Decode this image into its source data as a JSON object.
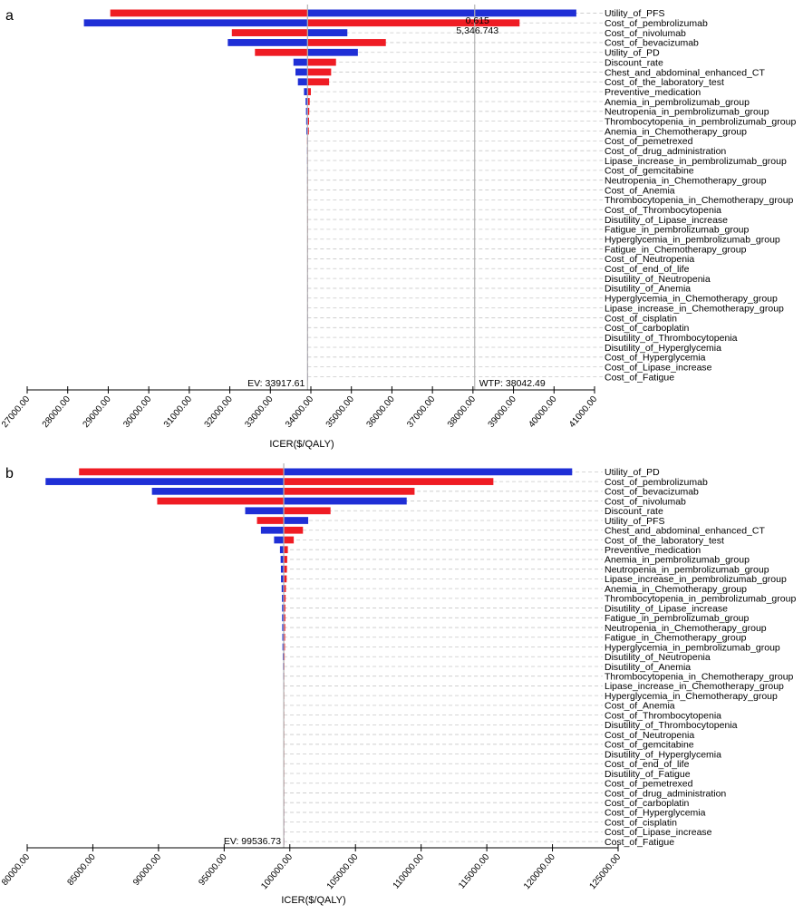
{
  "colors": {
    "low": "#ef1c24",
    "high": "#1f2fd6",
    "refline": "#b3b3b3",
    "grid": "#c8c8c8"
  },
  "chart_data": [
    {
      "type": "tornado",
      "panel_label": "a",
      "xlabel": "ICER($/QALY)",
      "xlim": [
        27000,
        41000
      ],
      "ticks": [
        27000,
        28000,
        29000,
        30000,
        31000,
        32000,
        33000,
        34000,
        35000,
        36000,
        37000,
        38000,
        39000,
        40000,
        41000
      ],
      "tick_labels": [
        "27000.00",
        "28000.00",
        "29000.00",
        "30000.00",
        "31000.00",
        "32000.00",
        "33000.00",
        "34000.00",
        "35000.00",
        "36000.00",
        "37000.00",
        "38000.00",
        "39000.00",
        "40000.00",
        "41000.00"
      ],
      "ev": 33917.61,
      "ev_label": "EV: 33917.61",
      "wtp": 38042.49,
      "wtp_label": "WTP: 38042.49",
      "annotations": [
        "0.615",
        "5,346.743"
      ],
      "parameters": [
        {
          "name": "Utility_of_PFS",
          "red": [
            29050,
            33917.61
          ],
          "blue": [
            33917.61,
            40550
          ]
        },
        {
          "name": "Cost_of_pembrolizumab",
          "red": [
            33917.61,
            39150
          ],
          "blue": [
            28400,
            33917.61
          ]
        },
        {
          "name": "Cost_of_nivolumab",
          "red": [
            32050,
            33917.61
          ],
          "blue": [
            33917.61,
            34900
          ]
        },
        {
          "name": "Cost_of_bevacizumab",
          "red": [
            33917.61,
            35850
          ],
          "blue": [
            31950,
            33917.61
          ]
        },
        {
          "name": "Utility_of_PD",
          "red": [
            32620,
            33917.61
          ],
          "blue": [
            33917.61,
            35160
          ]
        },
        {
          "name": "Discount_rate",
          "red": [
            33917.61,
            34620
          ],
          "blue": [
            33570,
            33917.61
          ]
        },
        {
          "name": "Chest_and_abdominal_enhanced_CT",
          "red": [
            33917.61,
            34500
          ],
          "blue": [
            33620,
            33917.61
          ]
        },
        {
          "name": "Cost_of_the_laboratory_test",
          "red": [
            33917.61,
            34450
          ],
          "blue": [
            33680,
            33917.61
          ]
        },
        {
          "name": "Preventive_medication",
          "red": [
            33917.61,
            34000
          ],
          "blue": [
            33830,
            33917.61
          ]
        },
        {
          "name": "Anemia_in_pembrolizumab_group",
          "red": [
            33917.61,
            33970
          ],
          "blue": [
            33870,
            33917.61
          ]
        },
        {
          "name": "Neutropenia_in_pembrolizumab_group",
          "red": [
            33917.61,
            33960
          ],
          "blue": [
            33880,
            33917.61
          ]
        },
        {
          "name": "Thrombocytopenia_in_pembrolizumab_group",
          "red": [
            33917.61,
            33955
          ],
          "blue": [
            33885,
            33917.61
          ]
        },
        {
          "name": "Anemia_in_Chemotherapy_group",
          "red": [
            33917.61,
            33950
          ],
          "blue": [
            33888,
            33917.61
          ]
        },
        {
          "name": "Cost_of_pemetrexed",
          "red": [
            33905,
            33917.61
          ],
          "blue": [
            33917.61,
            33930
          ]
        },
        {
          "name": "Cost_of_drug_administration",
          "red": [
            33917.61,
            33930
          ],
          "blue": [
            33905,
            33917.61
          ]
        },
        {
          "name": "Lipase_increase_in_pembrolizumab_group",
          "red": [
            33917.61,
            33930
          ],
          "blue": [
            33906,
            33917.61
          ]
        },
        {
          "name": "Cost_of_gemcitabine",
          "red": [
            33908,
            33917.61
          ],
          "blue": [
            33917.61,
            33928
          ]
        },
        {
          "name": "Neutropenia_in_Chemotherapy_group",
          "red": [
            33917.61,
            33927
          ],
          "blue": [
            33908,
            33917.61
          ]
        },
        {
          "name": "Cost_of_Anemia",
          "red": [
            33917.61,
            33926
          ],
          "blue": [
            33909,
            33917.61
          ]
        },
        {
          "name": "Thrombocytopenia_in_Chemotherapy_group",
          "red": [
            33917.61,
            33926
          ],
          "blue": [
            33909,
            33917.61
          ]
        },
        {
          "name": "Cost_of_Thrombocytopenia",
          "red": [
            33917.61,
            33925
          ],
          "blue": [
            33910,
            33917.61
          ]
        },
        {
          "name": "Disutility_of_Lipase_increase",
          "red": [
            33917.61,
            33925
          ],
          "blue": [
            33910,
            33917.61
          ]
        },
        {
          "name": "Fatigue_in_pembrolizumab_group",
          "red": [
            33917.61,
            33924
          ],
          "blue": [
            33911,
            33917.61
          ]
        },
        {
          "name": "Hyperglycemia_in_pembrolizumab_group",
          "red": [
            33917.61,
            33924
          ],
          "blue": [
            33911,
            33917.61
          ]
        },
        {
          "name": "Fatigue_in_Chemotherapy_group",
          "red": [
            33917.61,
            33923
          ],
          "blue": [
            33912,
            33917.61
          ]
        },
        {
          "name": "Cost_of_Neutropenia",
          "red": [
            33917.61,
            33923
          ],
          "blue": [
            33912,
            33917.61
          ]
        },
        {
          "name": "Cost_of_end_of_life",
          "red": [
            33917.61,
            33922
          ],
          "blue": [
            33913,
            33917.61
          ]
        },
        {
          "name": "Disutility_of_Neutropenia",
          "red": [
            33917.61,
            33922
          ],
          "blue": [
            33913,
            33917.61
          ]
        },
        {
          "name": "Disutility_of_Anemia",
          "red": [
            33917.61,
            33921
          ],
          "blue": [
            33914,
            33917.61
          ]
        },
        {
          "name": "Hyperglycemia_in_Chemotherapy_group",
          "red": [
            33917.61,
            33921
          ],
          "blue": [
            33914,
            33917.61
          ]
        },
        {
          "name": "Lipase_increase_in_Chemotherapy_group",
          "red": [
            33917.61,
            33921
          ],
          "blue": [
            33914,
            33917.61
          ]
        },
        {
          "name": "Cost_of_cisplatin",
          "red": [
            33917.61,
            33920
          ],
          "blue": [
            33915,
            33917.61
          ]
        },
        {
          "name": "Cost_of_carboplatin",
          "red": [
            33917.61,
            33920
          ],
          "blue": [
            33915,
            33917.61
          ]
        },
        {
          "name": "Disutility_of_Thrombocytopenia",
          "red": [
            33917.61,
            33920
          ],
          "blue": [
            33915,
            33917.61
          ]
        },
        {
          "name": "Disutility_of_Hyperglycemia",
          "red": [
            33917.61,
            33919
          ],
          "blue": [
            33916,
            33917.61
          ]
        },
        {
          "name": "Cost_of_Hyperglycemia",
          "red": [
            33917.61,
            33919
          ],
          "blue": [
            33916,
            33917.61
          ]
        },
        {
          "name": "Cost_of_Lipase_increase",
          "red": [
            33917.61,
            33918.5
          ],
          "blue": [
            33916.5,
            33917.61
          ]
        },
        {
          "name": "Cost_of_Fatigue",
          "red": [
            33917.61,
            33918.5
          ],
          "blue": [
            33916.5,
            33917.61
          ]
        }
      ]
    },
    {
      "type": "tornado",
      "panel_label": "b",
      "xlabel": "ICER($/QALY)",
      "xlim": [
        80000,
        125000
      ],
      "ticks": [
        80000,
        85000,
        90000,
        95000,
        100000,
        105000,
        110000,
        115000,
        120000,
        125000
      ],
      "tick_labels": [
        "80000.00",
        "85000.00",
        "90000.00",
        "95000.00",
        "100000.00",
        "105000.00",
        "110000.00",
        "115000.00",
        "120000.00",
        "125000.00"
      ],
      "ev": 99536.73,
      "ev_label": "EV: 99536.73",
      "parameters": [
        {
          "name": "Utility_of_PD",
          "red": [
            83950,
            99536.73
          ],
          "blue": [
            99536.73,
            121500
          ]
        },
        {
          "name": "Cost_of_pembrolizumab",
          "red": [
            99536.73,
            115500
          ],
          "blue": [
            81400,
            99536.73
          ]
        },
        {
          "name": "Cost_of_bevacizumab",
          "red": [
            99536.73,
            109500
          ],
          "blue": [
            89500,
            99536.73
          ]
        },
        {
          "name": "Cost_of_nivolumab",
          "red": [
            89900,
            99536.73
          ],
          "blue": [
            99536.73,
            108900
          ]
        },
        {
          "name": "Discount_rate",
          "red": [
            99536.73,
            103100
          ],
          "blue": [
            96600,
            99536.73
          ]
        },
        {
          "name": "Utility_of_PFS",
          "red": [
            97500,
            99536.73
          ],
          "blue": [
            99536.73,
            101400
          ]
        },
        {
          "name": "Chest_and_abdominal_enhanced_CT",
          "red": [
            99536.73,
            101000
          ],
          "blue": [
            97800,
            99536.73
          ]
        },
        {
          "name": "Cost_of_the_laboratory_test",
          "red": [
            99536.73,
            100300
          ],
          "blue": [
            98800,
            99536.73
          ]
        },
        {
          "name": "Preventive_medication",
          "red": [
            99536.73,
            99850
          ],
          "blue": [
            99250,
            99536.73
          ]
        },
        {
          "name": "Anemia_in_pembrolizumab_group",
          "red": [
            99536.73,
            99800
          ],
          "blue": [
            99300,
            99536.73
          ]
        },
        {
          "name": "Neutropenia_in_pembrolizumab_group",
          "red": [
            99536.73,
            99780
          ],
          "blue": [
            99320,
            99536.73
          ]
        },
        {
          "name": "Lipase_increase_in_pembrolizumab_group",
          "red": [
            99536.73,
            99760
          ],
          "blue": [
            99330,
            99536.73
          ]
        },
        {
          "name": "Anemia_in_Chemotherapy_group",
          "red": [
            99536.73,
            99700
          ],
          "blue": [
            99380,
            99536.73
          ]
        },
        {
          "name": "Thrombocytopenia_in_pembrolizumab_group",
          "red": [
            99536.73,
            99680
          ],
          "blue": [
            99400,
            99536.73
          ]
        },
        {
          "name": "Disutility_of_Lipase_increase",
          "red": [
            99536.73,
            99660
          ],
          "blue": [
            99410,
            99536.73
          ]
        },
        {
          "name": "Fatigue_in_pembrolizumab_group",
          "red": [
            99536.73,
            99660
          ],
          "blue": [
            99410,
            99536.73
          ]
        },
        {
          "name": "Neutropenia_in_Chemotherapy_group",
          "red": [
            99536.73,
            99650
          ],
          "blue": [
            99420,
            99536.73
          ]
        },
        {
          "name": "Fatigue_in_Chemotherapy_group",
          "red": [
            99536.73,
            99640
          ],
          "blue": [
            99430,
            99536.73
          ]
        },
        {
          "name": "Hyperglycemia_in_pembrolizumab_group",
          "red": [
            99536.73,
            99630
          ],
          "blue": [
            99440,
            99536.73
          ]
        },
        {
          "name": "Disutility_of_Neutropenia",
          "red": [
            99536.73,
            99610
          ],
          "blue": [
            99460,
            99536.73
          ]
        },
        {
          "name": "Disutility_of_Anemia",
          "red": [
            99536.73,
            99590
          ],
          "blue": [
            99480,
            99536.73
          ]
        },
        {
          "name": "Thrombocytopenia_in_Chemotherapy_group",
          "red": [
            99536.73,
            99580
          ],
          "blue": [
            99490,
            99536.73
          ]
        },
        {
          "name": "Lipase_increase_in_Chemotherapy_group",
          "red": [
            99536.73,
            99575
          ],
          "blue": [
            99495,
            99536.73
          ]
        },
        {
          "name": "Hyperglycemia_in_Chemotherapy_group",
          "red": [
            99536.73,
            99570
          ],
          "blue": [
            99500,
            99536.73
          ]
        },
        {
          "name": "Cost_of_Anemia",
          "red": [
            99536.73,
            99565
          ],
          "blue": [
            99505,
            99536.73
          ]
        },
        {
          "name": "Cost_of_Thrombocytopenia",
          "red": [
            99536.73,
            99560
          ],
          "blue": [
            99510,
            99536.73
          ]
        },
        {
          "name": "Disutility_of_Thrombocytopenia",
          "red": [
            99536.73,
            99555
          ],
          "blue": [
            99515,
            99536.73
          ]
        },
        {
          "name": "Cost_of_Neutropenia",
          "red": [
            99536.73,
            99552
          ],
          "blue": [
            99518,
            99536.73
          ]
        },
        {
          "name": "Cost_of_gemcitabine",
          "red": [
            99536.73,
            99550
          ],
          "blue": [
            99520,
            99536.73
          ]
        },
        {
          "name": "Disutility_of_Hyperglycemia",
          "red": [
            99536.73,
            99548
          ],
          "blue": [
            99522,
            99536.73
          ]
        },
        {
          "name": "Cost_of_end_of_life",
          "red": [
            99536.73,
            99546
          ],
          "blue": [
            99524,
            99536.73
          ]
        },
        {
          "name": "Disutility_of_Fatigue",
          "red": [
            99536.73,
            99545
          ],
          "blue": [
            99525,
            99536.73
          ]
        },
        {
          "name": "Cost_of_pemetrexed",
          "red": [
            99536.73,
            99544
          ],
          "blue": [
            99526,
            99536.73
          ]
        },
        {
          "name": "Cost_of_drug_administration",
          "red": [
            99536.73,
            99543
          ],
          "blue": [
            99527,
            99536.73
          ]
        },
        {
          "name": "Cost_of_carboplatin",
          "red": [
            99536.73,
            99542
          ],
          "blue": [
            99528,
            99536.73
          ]
        },
        {
          "name": "Cost_of_Hyperglycemia",
          "red": [
            99536.73,
            99541
          ],
          "blue": [
            99529,
            99536.73
          ]
        },
        {
          "name": "Cost_of_cisplatin",
          "red": [
            99536.73,
            99540
          ],
          "blue": [
            99530,
            99536.73
          ]
        },
        {
          "name": "Cost_of_Lipase_increase",
          "red": [
            99536.73,
            99539
          ],
          "blue": [
            99531,
            99536.73
          ]
        },
        {
          "name": "Cost_of_Fatigue",
          "red": [
            99536.73,
            99538
          ],
          "blue": [
            99532,
            99536.73
          ]
        }
      ]
    }
  ]
}
